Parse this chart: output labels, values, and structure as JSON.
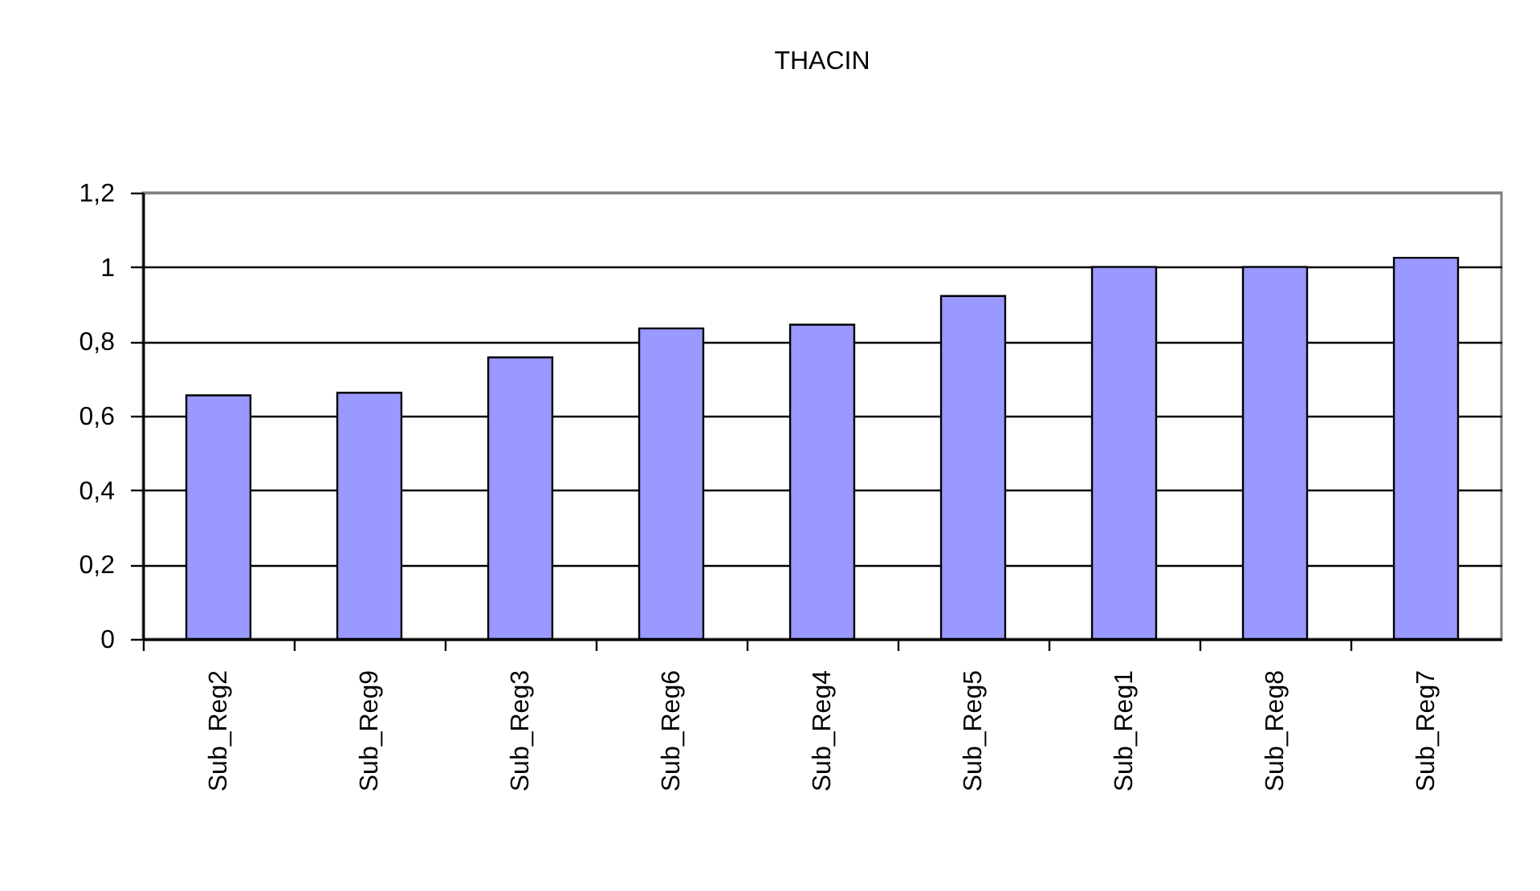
{
  "chart_data": {
    "type": "bar",
    "title": "THACIN",
    "categories": [
      "Sub_Reg2",
      "Sub_Reg9",
      "Sub_Reg3",
      "Sub_Reg6",
      "Sub_Reg4",
      "Sub_Reg5",
      "Sub_Reg1",
      "Sub_Reg8",
      "Sub_Reg7"
    ],
    "values": [
      0.655,
      0.662,
      0.757,
      0.835,
      0.845,
      0.922,
      1.0,
      1.0,
      1.025
    ],
    "color": "#9999ff",
    "ylim": [
      0,
      1.2
    ],
    "yticks": [
      0,
      {
        "value": 0.2,
        "label": "0,2"
      },
      {
        "value": 0.4,
        "label": "0,4"
      },
      {
        "value": 0.6,
        "label": "0,6"
      },
      {
        "value": 0.8,
        "label": "0,8"
      },
      1,
      {
        "value": 1.2,
        "label": "1,2"
      }
    ],
    "grid": "y"
  }
}
